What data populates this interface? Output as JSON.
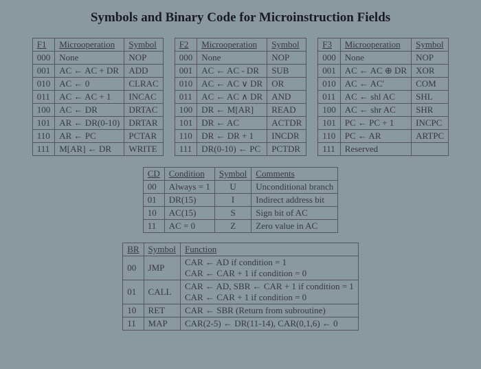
{
  "title": "Symbols and Binary Code for Microinstruction Fields",
  "f1": {
    "headers": [
      "F1",
      "Microoperation",
      "Symbol"
    ],
    "rows": [
      [
        "000",
        "None",
        "NOP"
      ],
      [
        "001",
        "AC ← AC + DR",
        "ADD"
      ],
      [
        "010",
        "AC ← 0",
        "CLRAC"
      ],
      [
        "011",
        "AC ← AC + 1",
        "INCAC"
      ],
      [
        "100",
        "AC ← DR",
        "DRTAC"
      ],
      [
        "101",
        "AR ← DR(0-10)",
        "DRTAR"
      ],
      [
        "110",
        "AR ← PC",
        "PCTAR"
      ],
      [
        "111",
        "M[AR] ← DR",
        "WRITE"
      ]
    ]
  },
  "f2": {
    "headers": [
      "F2",
      "Microoperation",
      "Symbol"
    ],
    "rows": [
      [
        "000",
        "None",
        "NOP"
      ],
      [
        "001",
        "AC ← AC - DR",
        "SUB"
      ],
      [
        "010",
        "AC ← AC ∨ DR",
        "OR"
      ],
      [
        "011",
        "AC ← AC ∧ DR",
        "AND"
      ],
      [
        "100",
        "DR ← M[AR]",
        "READ"
      ],
      [
        "101",
        "DR ← AC",
        "ACTDR"
      ],
      [
        "110",
        "DR ← DR + 1",
        "INCDR"
      ],
      [
        "111",
        "DR(0-10) ← PC",
        "PCTDR"
      ]
    ]
  },
  "f3": {
    "headers": [
      "F3",
      "Microoperation",
      "Symbol"
    ],
    "rows": [
      [
        "000",
        "None",
        "NOP"
      ],
      [
        "001",
        "AC ← AC ⊕ DR",
        "XOR"
      ],
      [
        "010",
        "AC ← AC'",
        "COM"
      ],
      [
        "011",
        "AC ← shl AC",
        "SHL"
      ],
      [
        "100",
        "AC ← shr AC",
        "SHR"
      ],
      [
        "101",
        "PC ← PC + 1",
        "INCPC"
      ],
      [
        "110",
        "PC ← AR",
        "ARTPC"
      ],
      [
        "111",
        "Reserved",
        ""
      ]
    ]
  },
  "cond": {
    "headers": [
      "CD",
      "Condition",
      "Symbol",
      "Comments"
    ],
    "rows": [
      [
        "00",
        "Always = 1",
        "U",
        "Unconditional branch"
      ],
      [
        "01",
        "DR(15)",
        "I",
        "Indirect address bit"
      ],
      [
        "10",
        "AC(15)",
        "S",
        "Sign bit of AC"
      ],
      [
        "11",
        "AC = 0",
        "Z",
        "Zero value in AC"
      ]
    ]
  },
  "br": {
    "headers": [
      "BR",
      "Symbol",
      "Function"
    ],
    "rows": [
      [
        "00",
        "JMP",
        "CAR ← AD if condition = 1\nCAR ← CAR + 1 if condition = 0"
      ],
      [
        "01",
        "CALL",
        "CAR ← AD, SBR ← CAR + 1 if condition = 1\nCAR ← CAR + 1 if condition = 0"
      ],
      [
        "10",
        "RET",
        "CAR ← SBR (Return from subroutine)"
      ],
      [
        "11",
        "MAP",
        "CAR(2-5) ← DR(11-14), CAR(0,1,6) ← 0"
      ]
    ]
  }
}
